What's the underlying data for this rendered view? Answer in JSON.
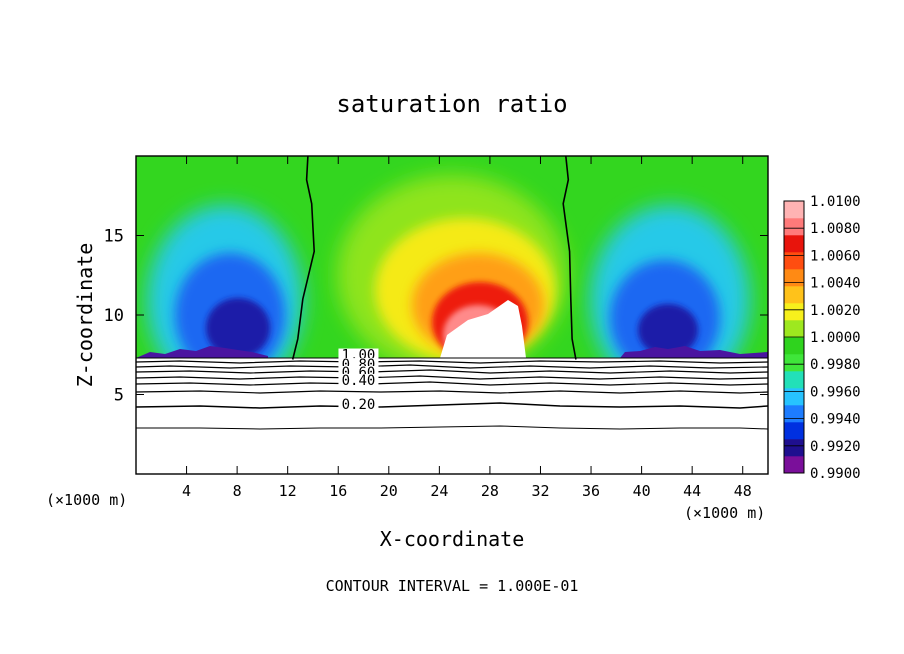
{
  "chart_data": {
    "type": "heatmap",
    "title": "saturation ratio",
    "xlabel": "X-coordinate",
    "ylabel": "Z-coordinate",
    "x_unit_label": "(×1000 m)",
    "z_unit_label": "(×1000 m)",
    "footer": "CONTOUR INTERVAL = 1.000E-01",
    "xlim": [
      0,
      50
    ],
    "ylim": [
      0,
      20
    ],
    "x_ticks": [
      4,
      8,
      12,
      16,
      20,
      24,
      28,
      32,
      36,
      40,
      44,
      48
    ],
    "x_tick_labels": [
      "4",
      "8",
      "12",
      "16",
      "20",
      "24",
      "28",
      "32",
      "36",
      "40",
      "44",
      "48"
    ],
    "y_ticks": [
      5,
      10,
      15
    ],
    "y_tick_labels": [
      "5",
      "10",
      "15"
    ],
    "colorbar": {
      "min": 0.99,
      "max": 1.01,
      "labels": [
        "1.0100",
        "1.0080",
        "1.0060",
        "1.0040",
        "1.0020",
        "1.0000",
        "0.9980",
        "0.9960",
        "0.9940",
        "0.9920",
        "0.9900"
      ],
      "colors": [
        "#7a0f9a",
        "#1f0f8f",
        "#0030e0",
        "#1d7cff",
        "#27c3ff",
        "#22e0b8",
        "#3fe63a",
        "#2fd31e",
        "#9ee81f",
        "#f7f01c",
        "#ffc21a",
        "#ff8a14",
        "#ff4d10",
        "#e8140c",
        "#ff7a7a",
        "#ffb3b3"
      ]
    },
    "contour_labels": [
      {
        "text": "1.00",
        "x": 17.6,
        "z": 7.2
      },
      {
        "text": "0.80",
        "x": 17.6,
        "z": 6.6
      },
      {
        "text": "0.60",
        "x": 17.6,
        "z": 6.1
      },
      {
        "text": "0.40",
        "x": 17.6,
        "z": 5.6
      },
      {
        "text": "0.20",
        "x": 17.6,
        "z": 4.1
      }
    ],
    "contour_levels_z": [
      0,
      0.2,
      0.4,
      0.6,
      0.8,
      1.0
    ],
    "saturation_boundary": {
      "left_x": [
        13.6,
        13.5,
        13.9,
        14.1,
        13.2,
        12.8,
        12.4
      ],
      "right_x": [
        34.0,
        34.2,
        33.8,
        34.3,
        34.4,
        34.5,
        34.8
      ],
      "z": [
        20,
        18.5,
        17,
        14,
        11,
        8.5,
        7.2
      ]
    }
  }
}
